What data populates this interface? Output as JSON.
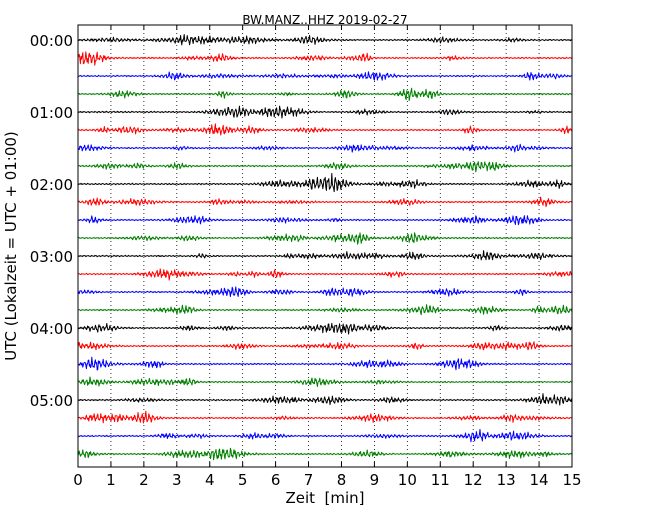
{
  "chart_data": {
    "type": "line",
    "title": "BW.MANZ..HHZ 2019-02-27",
    "xlabel": "Zeit  [min]",
    "ylabel": "UTC (Lokalzeit = UTC + 01:00)",
    "xlim": [
      0,
      15
    ],
    "xticks": [
      "0",
      "1",
      "2",
      "3",
      "4",
      "5",
      "6",
      "7",
      "8",
      "9",
      "10",
      "11",
      "12",
      "13",
      "14",
      "15"
    ],
    "yticks": [
      {
        "label": "00:00",
        "row": 0
      },
      {
        "label": "01:00",
        "row": 4
      },
      {
        "label": "02:00",
        "row": 8
      },
      {
        "label": "03:00",
        "row": 12
      },
      {
        "label": "04:00",
        "row": 16
      },
      {
        "label": "05:00",
        "row": 20
      }
    ],
    "row_count": 24,
    "minutes_per_row": 15,
    "colors": [
      "#000000",
      "#ff0000",
      "#0000ff",
      "#007f00"
    ],
    "grid": "vertical dotted",
    "trace": "seismic waveform per 15-minute row (noise-like oscillation)"
  }
}
